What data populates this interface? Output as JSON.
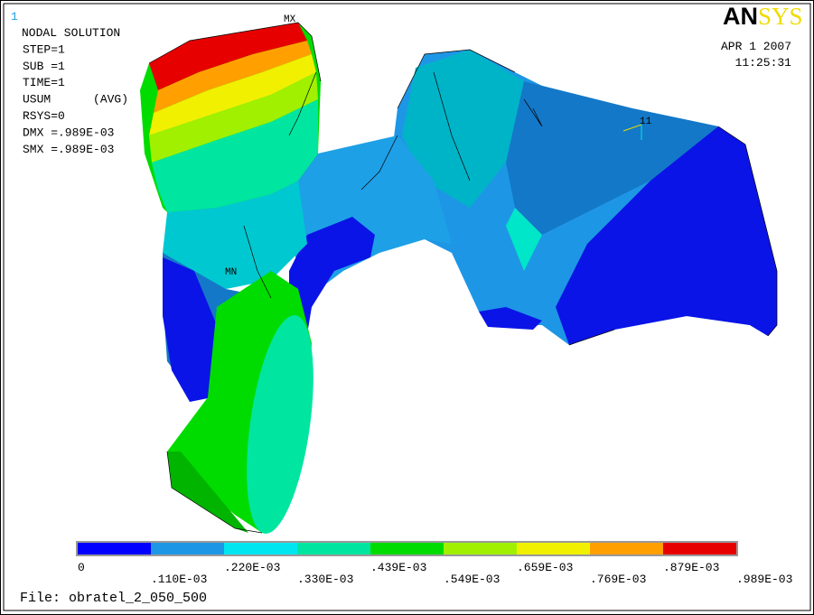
{
  "window_number": "1",
  "info": [
    "NODAL SOLUTION",
    "STEP=1",
    "SUB =1",
    "TIME=1",
    "USUM      (AVG)",
    "RSYS=0",
    "DMX =.989E-03",
    "SMX =.989E-03"
  ],
  "logo": {
    "dark": "AN",
    "light": "SYS"
  },
  "date": "APR  1 2007",
  "time": "11:25:31",
  "markers": {
    "max": "MX",
    "min": "MN",
    "node": "11"
  },
  "legend": {
    "colors": [
      "#0000ff",
      "#1e96e6",
      "#00e6f0",
      "#00e6a0",
      "#00dc00",
      "#a0f000",
      "#f0f000",
      "#ffa000",
      "#e60000"
    ],
    "labels": [
      "0",
      ".110E-03",
      ".220E-03",
      ".330E-03",
      ".439E-03",
      ".549E-03",
      ".659E-03",
      ".769E-03",
      ".879E-03",
      ".989E-03"
    ]
  },
  "file": "File: obratel_2_050_500"
}
